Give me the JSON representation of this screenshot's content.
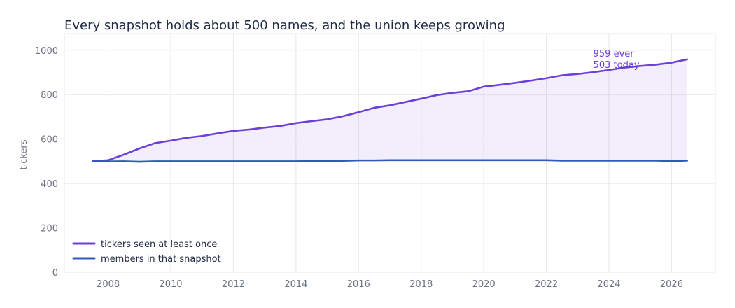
{
  "chart_data": {
    "type": "line",
    "title": "Every snapshot holds about 500 names, and the union keeps growing",
    "xlabel": "",
    "ylabel": "tickers",
    "xlim": [
      2006.6,
      2027.4
    ],
    "ylim": [
      0,
      1075
    ],
    "xticks": [
      2008,
      2010,
      2012,
      2014,
      2016,
      2018,
      2020,
      2022,
      2024,
      2026
    ],
    "yticks": [
      0,
      200,
      400,
      600,
      800,
      1000
    ],
    "grid": true,
    "legend_position": "bottom-left",
    "x": [
      2007.5,
      2008.0,
      2008.5,
      2009.0,
      2009.5,
      2010.0,
      2010.5,
      2011.0,
      2011.5,
      2012.0,
      2012.5,
      2013.0,
      2013.5,
      2014.0,
      2014.5,
      2015.0,
      2015.5,
      2016.0,
      2016.5,
      2017.0,
      2017.5,
      2018.0,
      2018.5,
      2019.0,
      2019.5,
      2020.0,
      2020.5,
      2021.0,
      2021.5,
      2022.0,
      2022.5,
      2023.0,
      2023.5,
      2024.0,
      2024.5,
      2025.0,
      2025.5,
      2026.0,
      2026.5
    ],
    "series": [
      {
        "name": "tickers seen at least once",
        "color": "#6c3fdb",
        "fill": true,
        "values": [
          500,
          505,
          530,
          558,
          582,
          593,
          606,
          614,
          626,
          637,
          643,
          652,
          659,
          672,
          681,
          689,
          703,
          721,
          741,
          752,
          767,
          782,
          798,
          808,
          815,
          836,
          844,
          853,
          863,
          874,
          887,
          893,
          901,
          911,
          922,
          929,
          935,
          944,
          959
        ]
      },
      {
        "name": "members in that snapshot",
        "color": "#2f5bb7",
        "fill": false,
        "values": [
          500,
          499,
          500,
          498,
          500,
          500,
          500,
          500,
          500,
          500,
          500,
          500,
          500,
          500,
          501,
          502,
          502,
          504,
          504,
          505,
          505,
          505,
          505,
          505,
          505,
          505,
          505,
          505,
          505,
          505,
          503,
          503,
          503,
          503,
          503,
          503,
          503,
          501,
          503
        ]
      }
    ],
    "annotation": {
      "line1": "959 ever",
      "line2": "503 today",
      "color": "#6c3fdb",
      "anchor_x": 2023.5,
      "anchor_y": 984
    }
  }
}
